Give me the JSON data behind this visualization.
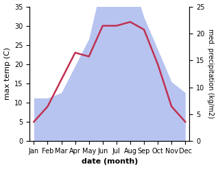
{
  "months": [
    "Jan",
    "Feb",
    "Mar",
    "Apr",
    "May",
    "Jun",
    "Jul",
    "Aug",
    "Sep",
    "Oct",
    "Nov",
    "Dec"
  ],
  "temperature": [
    5,
    9,
    16,
    23,
    22,
    30,
    30,
    31,
    29,
    20,
    9,
    5
  ],
  "precipitation": [
    8,
    8,
    9,
    14,
    19,
    30,
    28,
    31,
    23,
    17,
    11,
    9
  ],
  "temp_color": "#c03050",
  "precip_fill_color": "#b8c4f0",
  "temp_ylim": [
    0,
    35
  ],
  "precip_ylim": [
    0,
    25
  ],
  "temp_yticks": [
    0,
    5,
    10,
    15,
    20,
    25,
    30,
    35
  ],
  "precip_yticks": [
    0,
    5,
    10,
    15,
    20,
    25
  ],
  "xlabel": "date (month)",
  "ylabel_left": "max temp (C)",
  "ylabel_right": "med. precipitation (kg/m2)",
  "label_fontsize": 8,
  "tick_fontsize": 7,
  "linewidth": 1.8
}
